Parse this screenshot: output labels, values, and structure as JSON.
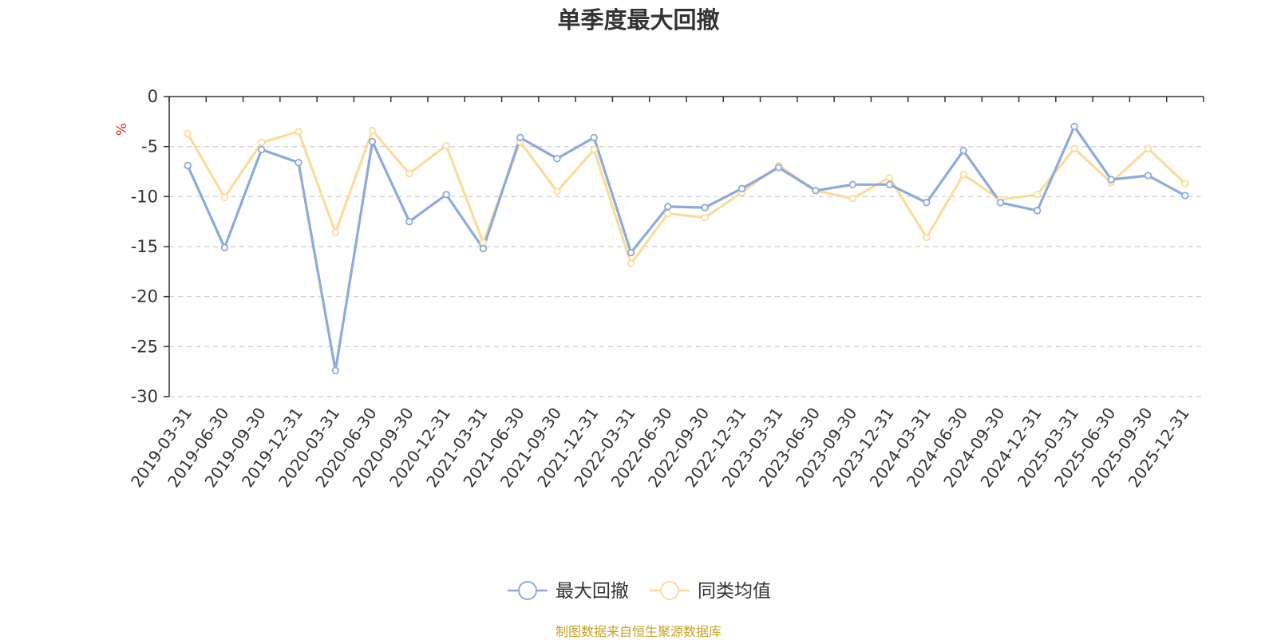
{
  "title": "单季度最大回撤",
  "source": "制图数据来自恒生聚源数据库",
  "chart_data": {
    "type": "line",
    "title": "单季度最大回撤",
    "ylabel": "%",
    "xlabel": "",
    "ylim": [
      -30,
      0
    ],
    "yticks": [
      0,
      -5,
      -10,
      -15,
      -20,
      -25,
      -30
    ],
    "grid": true,
    "legend_position": "bottom-center",
    "categories": [
      "2019-03-31",
      "2019-06-30",
      "2019-09-30",
      "2019-12-31",
      "2020-03-31",
      "2020-06-30",
      "2020-09-30",
      "2020-12-31",
      "2021-03-31",
      "2021-06-30",
      "2021-09-30",
      "2021-12-31",
      "2022-03-31",
      "2022-06-30",
      "2022-09-30",
      "2022-12-31",
      "2023-03-31",
      "2023-06-30",
      "2023-09-30",
      "2023-12-31",
      "2024-03-31",
      "2024-06-30",
      "2024-09-30",
      "2024-12-31",
      "2025-03-31",
      "2025-06-30",
      "2025-09-30",
      "2025-12-31"
    ],
    "series": [
      {
        "name": "最大回撤",
        "color": "#8eaadb",
        "values": [
          -6.9,
          -15.1,
          -5.3,
          -6.6,
          -27.4,
          -4.5,
          -12.5,
          -9.8,
          -15.2,
          -4.1,
          -6.2,
          -4.1,
          -15.6,
          -11.0,
          -11.1,
          -9.2,
          -7.1,
          -9.4,
          -8.8,
          -8.8,
          -10.6,
          -5.4,
          -10.6,
          -11.4,
          -3.0,
          -8.3,
          -7.9,
          -9.9
        ]
      },
      {
        "name": "同类均值",
        "color": "#fcdc9c",
        "values": [
          -3.7,
          -10.1,
          -4.6,
          -3.5,
          -13.6,
          -3.4,
          -7.7,
          -4.9,
          -14.6,
          -4.5,
          -9.5,
          -5.3,
          -16.7,
          -11.7,
          -12.1,
          -9.6,
          -6.9,
          -9.4,
          -10.2,
          -8.1,
          -14.1,
          -7.8,
          -10.3,
          -9.8,
          -5.2,
          -8.6,
          -5.2,
          -8.7
        ]
      }
    ]
  }
}
